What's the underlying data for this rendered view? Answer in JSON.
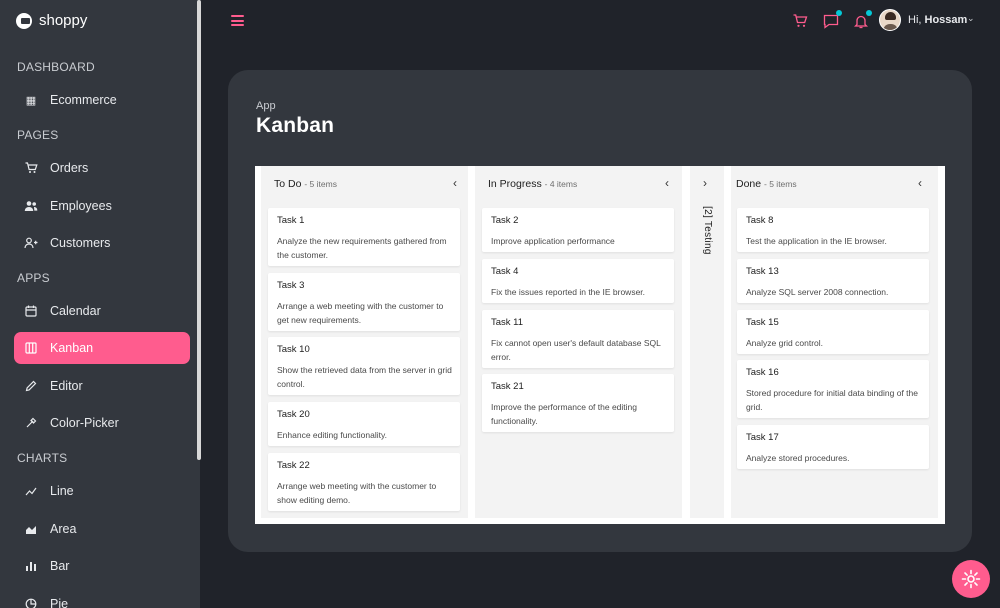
{
  "brand": {
    "name": "shoppy"
  },
  "sidebar": {
    "sections": [
      "DASHBOARD",
      "PAGES",
      "APPS",
      "CHARTS"
    ],
    "items": [
      {
        "label": "Ecommerce",
        "icon": "shopping-bag-icon"
      },
      {
        "label": "Orders",
        "icon": "cart-icon"
      },
      {
        "label": "Employees",
        "icon": "people-icon"
      },
      {
        "label": "Customers",
        "icon": "person-add-icon"
      },
      {
        "label": "Calendar",
        "icon": "calendar-icon"
      },
      {
        "label": "Kanban",
        "icon": "kanban-icon"
      },
      {
        "label": "Editor",
        "icon": "pencil-icon"
      },
      {
        "label": "Color-Picker",
        "icon": "color-drop-icon"
      },
      {
        "label": "Line",
        "icon": "line-chart-icon"
      },
      {
        "label": "Area",
        "icon": "area-chart-icon"
      },
      {
        "label": "Bar",
        "icon": "bar-chart-icon"
      },
      {
        "label": "Pie",
        "icon": "pie-chart-icon"
      }
    ],
    "active": "Kanban"
  },
  "navbar": {
    "greeting": "Hi,",
    "user": "Hossam"
  },
  "page": {
    "breadcrumb": "App",
    "title": "Kanban"
  },
  "kanban": {
    "columns": [
      {
        "name": "To Do",
        "count": "- 5 items",
        "cards": [
          {
            "title": "Task 1",
            "desc": "Analyze the new requirements gathered from the customer."
          },
          {
            "title": "Task 3",
            "desc": "Arrange a web meeting with the customer to get new requirements."
          },
          {
            "title": "Task 10",
            "desc": "Show the retrieved data from the server in grid control."
          },
          {
            "title": "Task 20",
            "desc": "Enhance editing functionality."
          },
          {
            "title": "Task 22",
            "desc": "Arrange web meeting with the customer to show editing demo."
          }
        ]
      },
      {
        "name": "In Progress",
        "count": "- 4 items",
        "cards": [
          {
            "title": "Task 2",
            "desc": "Improve application performance"
          },
          {
            "title": "Task 4",
            "desc": "Fix the issues reported in the IE browser."
          },
          {
            "title": "Task 11",
            "desc": "Fix cannot open user's default database SQL error."
          },
          {
            "title": "Task 21",
            "desc": "Improve the performance of the editing functionality."
          }
        ]
      },
      {
        "name": "Done",
        "count": "- 5 items",
        "cards": [
          {
            "title": "Task 8",
            "desc": "Test the application in the IE browser."
          },
          {
            "title": "Task 13",
            "desc": "Analyze SQL server 2008 connection."
          },
          {
            "title": "Task 15",
            "desc": "Analyze grid control."
          },
          {
            "title": "Task 16",
            "desc": "Stored procedure for initial data binding of the grid."
          },
          {
            "title": "Task 17",
            "desc": "Analyze stored procedures."
          }
        ]
      }
    ],
    "collapsed_column": {
      "label": "[2] Testing"
    }
  },
  "colors": {
    "accent": "#ff5c8e",
    "sidebar": "#33373e",
    "background": "#20232a",
    "notification_dot": "#03c9d7"
  }
}
